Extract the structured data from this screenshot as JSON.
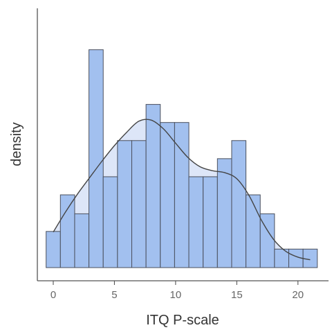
{
  "chart_data": {
    "type": "bar",
    "title": "",
    "xlabel": "ITQ P-scale",
    "ylabel": "density",
    "x_ticks": [
      0,
      5,
      10,
      15,
      20
    ],
    "xlim": [
      -1.3,
      22.5
    ],
    "ylim": [
      0,
      0.119
    ],
    "grid": false,
    "legend": "none",
    "bins": {
      "width": 1.167,
      "left_edges": [
        -0.583,
        0.583,
        1.75,
        2.917,
        4.083,
        5.25,
        6.417,
        7.583,
        8.75,
        9.917,
        11.083,
        12.25,
        13.417,
        14.583,
        15.75,
        16.917,
        18.083,
        19.25,
        20.417
      ],
      "density": [
        0.0166,
        0.0334,
        0.0247,
        0.1,
        0.0417,
        0.0583,
        0.0583,
        0.0749,
        0.0666,
        0.0666,
        0.0417,
        0.0417,
        0.05,
        0.0583,
        0.0334,
        0.0247,
        0.0085,
        0.0085,
        0.0085
      ]
    },
    "density_curve": {
      "x": [
        0,
        1,
        2,
        3,
        4,
        5,
        6,
        7,
        8,
        9,
        10,
        11,
        12,
        13,
        14,
        15,
        16,
        17,
        18,
        19,
        20,
        21
      ],
      "y": [
        0.0163,
        0.0255,
        0.0339,
        0.0415,
        0.049,
        0.056,
        0.0621,
        0.0672,
        0.0677,
        0.0637,
        0.0571,
        0.0506,
        0.0463,
        0.0445,
        0.0436,
        0.0408,
        0.0331,
        0.0219,
        0.013,
        0.0075,
        0.0048,
        0.0036
      ]
    },
    "colors": {
      "bar_fill": "#a2c0ef",
      "bar_stroke": "#4a4f5c",
      "density_fill": "#dde6f8",
      "density_line": "#444444",
      "axis": "#555555",
      "tick_label": "#666666"
    }
  }
}
